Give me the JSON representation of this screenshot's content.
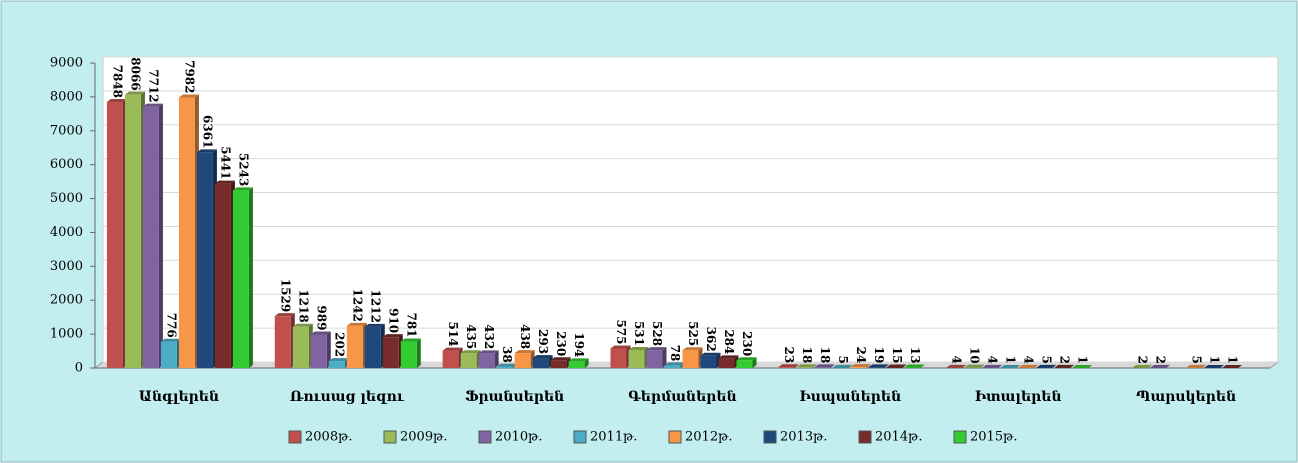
{
  "chart_data": {
    "type": "bar",
    "categories": [
      "Անգլերեն",
      "Ռուսաց լեզու",
      "Ֆրանսերեն",
      "Գերմաներեն",
      "Իսպաներեն",
      "Իտալերեն",
      "Պարսկերեն"
    ],
    "series": [
      {
        "name": "2008թ.",
        "color": "#c0504d",
        "values": [
          7848,
          1529,
          514,
          575,
          23,
          4,
          null
        ]
      },
      {
        "name": "2009թ.",
        "color": "#9bbb59",
        "values": [
          8066,
          1218,
          435,
          531,
          18,
          10,
          2
        ]
      },
      {
        "name": "2010թ.",
        "color": "#8064a2",
        "values": [
          7712,
          989,
          432,
          528,
          18,
          4,
          2
        ]
      },
      {
        "name": "2011թ.",
        "color": "#4bacc6",
        "values": [
          776,
          202,
          38,
          78,
          5,
          1,
          null
        ]
      },
      {
        "name": "2012թ.",
        "color": "#f79646",
        "values": [
          7982,
          1242,
          438,
          525,
          24,
          4,
          5
        ]
      },
      {
        "name": "2013թ.",
        "color": "#1f497d",
        "values": [
          6361,
          1212,
          293,
          362,
          19,
          5,
          1
        ]
      },
      {
        "name": "2014թ.",
        "color": "#772c2a",
        "values": [
          5441,
          910,
          230,
          284,
          15,
          2,
          1
        ]
      },
      {
        "name": "2015թ.",
        "color": "#33cc33",
        "values": [
          5243,
          781,
          194,
          230,
          13,
          1,
          null
        ]
      }
    ],
    "ylim": [
      0,
      9000
    ],
    "yticks": [
      0,
      1000,
      2000,
      3000,
      4000,
      5000,
      6000,
      7000,
      8000,
      9000
    ],
    "grid": true,
    "legend": "bottom"
  }
}
